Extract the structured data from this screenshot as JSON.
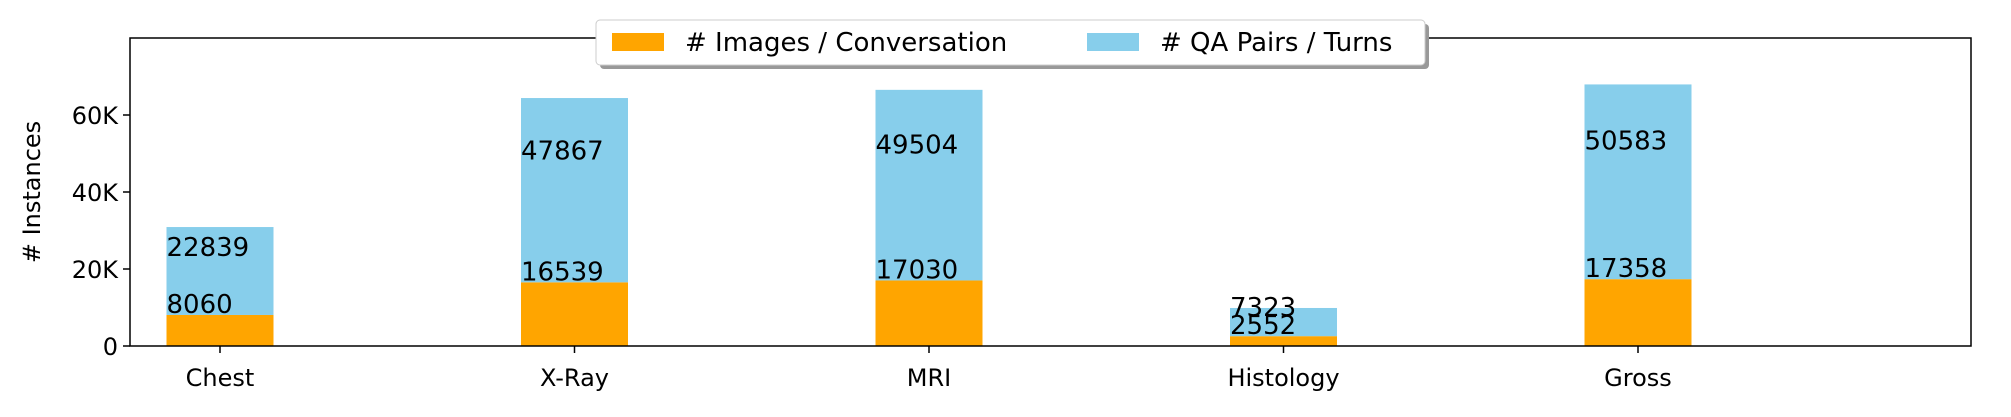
{
  "chart_data": {
    "type": "bar",
    "stacked": true,
    "categories": [
      "Chest",
      "X-Ray",
      "MRI",
      "Histology",
      "Gross"
    ],
    "series": [
      {
        "name": "# Images / Conversation",
        "values": [
          8060,
          16539,
          17030,
          2552,
          17358
        ],
        "labels": [
          "8060",
          "16539",
          "17030",
          "2552",
          "17358"
        ],
        "color": "#FFA500"
      },
      {
        "name": "# QA Pairs / Turns",
        "values": [
          22839,
          47867,
          49504,
          7323,
          50583
        ],
        "labels": [
          "22839",
          "47867",
          "49504",
          "7323",
          "50583"
        ],
        "color": "#87CEEB"
      }
    ],
    "ylabel": "# Instances",
    "xlabel": "",
    "ylim": [
      0,
      80000
    ],
    "yticks": [
      0,
      20000,
      40000,
      60000
    ],
    "ytick_labels": [
      "0",
      "20K",
      "40K",
      "60K"
    ],
    "grid": false,
    "legend_position": "top-center"
  }
}
